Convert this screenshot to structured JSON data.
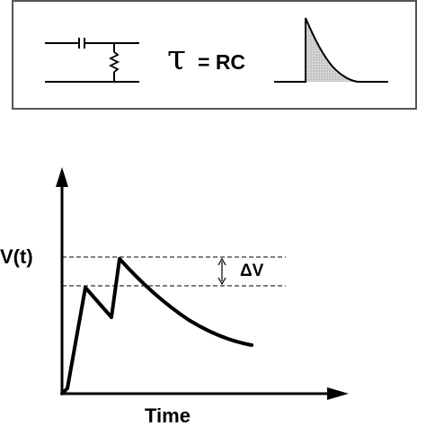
{
  "circuit_box": {
    "formula_symbol": "τ",
    "formula_rest": "= RC"
  },
  "graph": {
    "y_label": "V(t)",
    "x_label": "Time",
    "delta_label": "ΔV"
  },
  "colors": {
    "ink": "#000000",
    "shade": "#bdbdbd",
    "box_border": "#555555"
  }
}
